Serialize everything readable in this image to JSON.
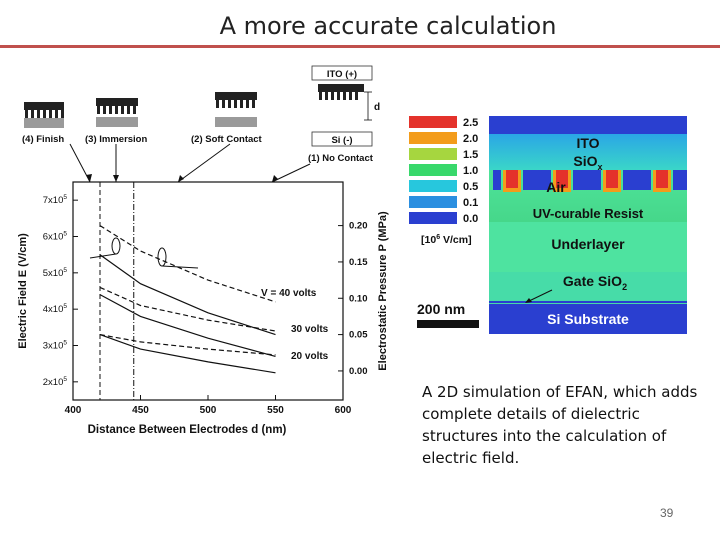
{
  "slide": {
    "title": "A more accurate calculation",
    "caption": "A 2D simulation of EFAN, which adds complete details of dielectric structures into the calculation of electric field.",
    "page_number": "39"
  },
  "chart_data": {
    "type": "line",
    "xlabel": "Distance Between Electrodes d (nm)",
    "ylabel": "Electric Field E (V/cm)",
    "y2label": "Electrostatic Pressure P (MPa)",
    "xlim": [
      400,
      600
    ],
    "ylim": [
      150000,
      750000
    ],
    "y2lim": [
      -0.04,
      0.26
    ],
    "x_ticks": [
      "400",
      "450",
      "500",
      "550",
      "600"
    ],
    "y_ticks": [
      {
        "label": "2x10",
        "exp": "5",
        "value": 200000
      },
      {
        "label": "3x10",
        "exp": "5",
        "value": 300000
      },
      {
        "label": "4x10",
        "exp": "5",
        "value": 400000
      },
      {
        "label": "5x10",
        "exp": "5",
        "value": 500000
      },
      {
        "label": "6x10",
        "exp": "5",
        "value": 600000
      },
      {
        "label": "7x10",
        "exp": "5",
        "value": 700000
      }
    ],
    "y2_ticks": [
      "0.20",
      "0.15",
      "0.10",
      "0.05",
      "0.00"
    ],
    "series_labels": [
      "V = 40 volts",
      "30 volts",
      "20 volts"
    ],
    "series": [
      {
        "name": "V = 40 volts",
        "quantity": "E",
        "x": [
          420,
          450,
          500,
          550
        ],
        "y": [
          550000,
          470000,
          390000,
          330000
        ]
      },
      {
        "name": "V = 40 volts",
        "quantity": "P",
        "x": [
          420,
          450,
          500,
          550
        ],
        "y": [
          0.2,
          0.165,
          0.125,
          0.095
        ]
      },
      {
        "name": "30 volts",
        "quantity": "E",
        "x": [
          420,
          450,
          500,
          550
        ],
        "y": [
          440000,
          380000,
          320000,
          270000
        ]
      },
      {
        "name": "30 volts",
        "quantity": "P",
        "x": [
          420,
          450,
          500,
          550
        ],
        "y": [
          0.115,
          0.09,
          0.07,
          0.055
        ]
      },
      {
        "name": "20 volts",
        "quantity": "E",
        "x": [
          420,
          450,
          500,
          550
        ],
        "y": [
          330000,
          290000,
          255000,
          225000
        ]
      },
      {
        "name": "20 volts",
        "quantity": "P",
        "x": [
          420,
          450,
          500,
          550
        ],
        "y": [
          0.05,
          0.04,
          0.03,
          0.022
        ]
      }
    ],
    "stages": [
      {
        "label": "(4) Finish",
        "d": 420
      },
      {
        "label": "(3) Immersion",
        "d": 445
      },
      {
        "label": "(2) Soft Contact",
        "d": 500
      },
      {
        "label": "(1) No Contact",
        "d": 550
      }
    ],
    "stage_parts": {
      "ito": "ITO (+)",
      "si": "Si (-)",
      "gap": "d"
    }
  },
  "simulation": {
    "legend_levels": [
      "2.5",
      "2.0",
      "1.5",
      "1.0",
      "0.5",
      "0.1",
      "0.0"
    ],
    "legend_colors": [
      "#e4322b",
      "#f39c1b",
      "#a6d63f",
      "#38d86b",
      "#27c7dd",
      "#2b8fe0",
      "#2a3fd0"
    ],
    "legend_unit": "[10",
    "legend_unit_exp": "6",
    "legend_unit_tail": " V/cm]",
    "scale_bar": "200 nm",
    "layers": {
      "ito": "ITO",
      "siox": "SiO",
      "siox_sub": "x",
      "air": "Air",
      "resist": "UV-curable Resist",
      "underlayer": "Underlayer",
      "gate": "Gate SiO",
      "gate_sub": "2",
      "substrate": "Si Substrate"
    }
  }
}
